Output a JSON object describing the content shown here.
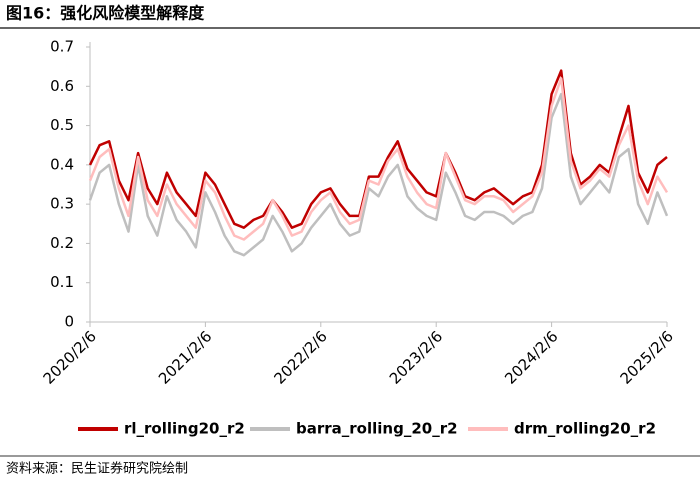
{
  "chart_data": {
    "type": "line",
    "title": "图16：强化风险模型解释度",
    "source": "资料来源：民生证券研究院绘制",
    "categories": [
      "2020/2/6",
      null,
      null,
      null,
      null,
      null,
      null,
      null,
      null,
      null,
      null,
      null,
      "2021/2/6",
      null,
      null,
      null,
      null,
      null,
      null,
      null,
      null,
      null,
      null,
      null,
      "2022/2/6",
      null,
      null,
      null,
      null,
      null,
      null,
      null,
      null,
      null,
      null,
      null,
      "2023/2/6",
      null,
      null,
      null,
      null,
      null,
      null,
      null,
      null,
      null,
      null,
      null,
      "2024/2/6",
      null,
      null,
      null,
      null,
      null,
      null,
      null,
      null,
      null,
      null,
      null,
      "2025/2/6"
    ],
    "series": [
      {
        "name": "rl_rolling20_r2",
        "color": "#c00000",
        "values": [
          0.4,
          0.45,
          0.46,
          0.36,
          0.31,
          0.43,
          0.34,
          0.3,
          0.38,
          0.33,
          0.3,
          0.27,
          0.38,
          0.35,
          0.3,
          0.25,
          0.24,
          0.26,
          0.27,
          0.31,
          0.28,
          0.24,
          0.25,
          0.3,
          0.33,
          0.34,
          0.3,
          0.27,
          0.27,
          0.37,
          0.37,
          0.42,
          0.46,
          0.39,
          0.36,
          0.33,
          0.32,
          0.43,
          0.38,
          0.32,
          0.31,
          0.33,
          0.34,
          0.32,
          0.3,
          0.32,
          0.33,
          0.4,
          0.58,
          0.64,
          0.43,
          0.35,
          0.37,
          0.4,
          0.38,
          0.47,
          0.55,
          0.38,
          0.33,
          0.4,
          0.42
        ]
      },
      {
        "name": "barra_rolling_20_r2",
        "color": "#bfbfbf",
        "values": [
          0.31,
          0.38,
          0.4,
          0.3,
          0.23,
          0.4,
          0.27,
          0.22,
          0.32,
          0.26,
          0.23,
          0.19,
          0.33,
          0.28,
          0.22,
          0.18,
          0.17,
          0.19,
          0.21,
          0.27,
          0.23,
          0.18,
          0.2,
          0.24,
          0.27,
          0.3,
          0.25,
          0.22,
          0.23,
          0.34,
          0.32,
          0.37,
          0.4,
          0.32,
          0.29,
          0.27,
          0.26,
          0.38,
          0.33,
          0.27,
          0.26,
          0.28,
          0.28,
          0.27,
          0.25,
          0.27,
          0.28,
          0.34,
          0.52,
          0.58,
          0.37,
          0.3,
          0.33,
          0.36,
          0.33,
          0.42,
          0.44,
          0.3,
          0.25,
          0.33,
          0.27
        ]
      },
      {
        "name": "drm_rolling20_r2",
        "color": "#ffbdbd",
        "values": [
          0.36,
          0.42,
          0.44,
          0.34,
          0.27,
          0.42,
          0.31,
          0.27,
          0.35,
          0.3,
          0.27,
          0.24,
          0.36,
          0.33,
          0.27,
          0.22,
          0.21,
          0.23,
          0.25,
          0.31,
          0.27,
          0.22,
          0.23,
          0.28,
          0.31,
          0.33,
          0.28,
          0.25,
          0.26,
          0.36,
          0.35,
          0.41,
          0.44,
          0.37,
          0.33,
          0.3,
          0.29,
          0.43,
          0.37,
          0.31,
          0.3,
          0.32,
          0.32,
          0.31,
          0.28,
          0.3,
          0.32,
          0.38,
          0.55,
          0.62,
          0.41,
          0.34,
          0.36,
          0.39,
          0.37,
          0.45,
          0.5,
          0.36,
          0.3,
          0.37,
          0.33
        ]
      }
    ],
    "ylim": [
      0,
      0.7
    ],
    "yticks": [
      0,
      0.1,
      0.2,
      0.3,
      0.4,
      0.5,
      0.6,
      0.7
    ],
    "grid": false
  }
}
